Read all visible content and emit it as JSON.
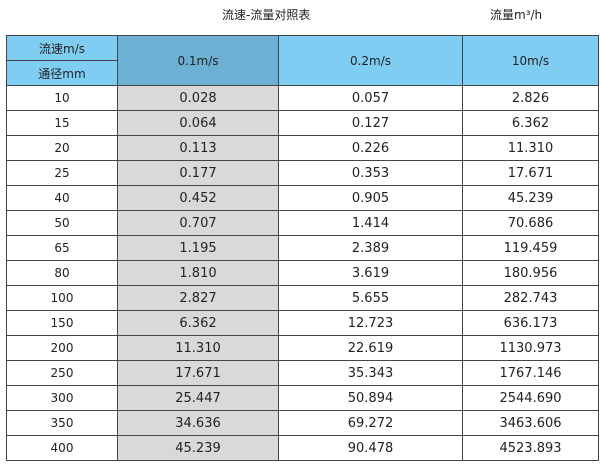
{
  "title": "流速-流量对照表",
  "unit_label": "流量m³/h",
  "header": {
    "velocity_label": "流速m/s",
    "diameter_label": "通径mm",
    "columns": [
      "0.1m/s",
      "0.2m/s",
      "10m/s"
    ]
  },
  "rows": [
    [
      "10",
      "0.028",
      "0.057",
      "2.826"
    ],
    [
      "15",
      "0.064",
      "0.127",
      "6.362"
    ],
    [
      "20",
      "0.113",
      "0.226",
      "11.310"
    ],
    [
      "25",
      "0.177",
      "0.353",
      "17.671"
    ],
    [
      "40",
      "0.452",
      "0.905",
      "45.239"
    ],
    [
      "50",
      "0.707",
      "1.414",
      "70.686"
    ],
    [
      "65",
      "1.195",
      "2.389",
      "119.459"
    ],
    [
      "80",
      "1.810",
      "3.619",
      "180.956"
    ],
    [
      "100",
      "2.827",
      "5.655",
      "282.743"
    ],
    [
      "150",
      "6.362",
      "12.723",
      "636.173"
    ],
    [
      "200",
      "11.310",
      "22.619",
      "1130.973"
    ],
    [
      "250",
      "17.671",
      "35.343",
      "1767.146"
    ],
    [
      "300",
      "25.447",
      "50.894",
      "2544.690"
    ],
    [
      "350",
      "34.636",
      "69.272",
      "3463.606"
    ],
    [
      "400",
      "45.239",
      "90.478",
      "4523.893"
    ]
  ]
}
